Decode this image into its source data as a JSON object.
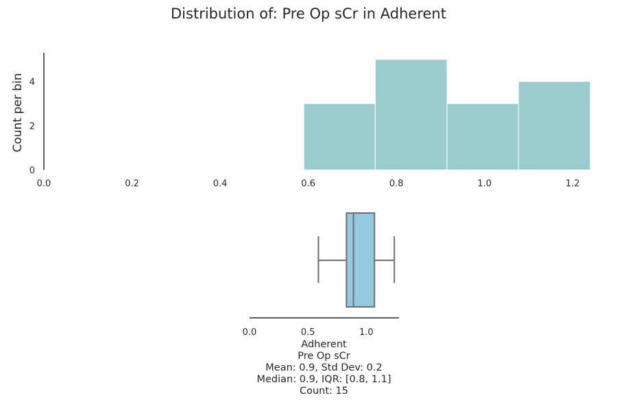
{
  "title": "Distribution of: Pre Op sCr in Adherent",
  "chart_data": [
    {
      "type": "histogram",
      "ylabel": "Count per bin",
      "xlim": [
        0.0,
        1.24
      ],
      "ylim": [
        0,
        5.3
      ],
      "xticks": [
        "0.0",
        "0.2",
        "0.4",
        "0.6",
        "0.8",
        "1.0",
        "1.2"
      ],
      "yticks": [
        "0",
        "2",
        "4"
      ],
      "bins": [
        {
          "x0": 0.59,
          "x1": 0.752,
          "count": 3
        },
        {
          "x0": 0.752,
          "x1": 0.915,
          "count": 5
        },
        {
          "x0": 0.915,
          "x1": 1.077,
          "count": 3
        },
        {
          "x0": 1.077,
          "x1": 1.24,
          "count": 4
        }
      ],
      "color": "#9acccd"
    },
    {
      "type": "box",
      "xlim": [
        0.0,
        1.28
      ],
      "xticks": [
        "0.0",
        "0.5",
        "1.0"
      ],
      "whisker_low": 0.59,
      "q1": 0.83,
      "median": 0.89,
      "q3": 1.07,
      "whisker_high": 1.24,
      "color": "#95c9df",
      "edge_color": "#6e6e6e"
    }
  ],
  "caption": {
    "group": "Adherent",
    "variable": "Pre Op sCr",
    "line_mean": "Mean: 0.9, Std Dev: 0.2",
    "line_median": "Median: 0.9, IQR: [0.8, 1.1]",
    "line_count": "Count: 15"
  }
}
